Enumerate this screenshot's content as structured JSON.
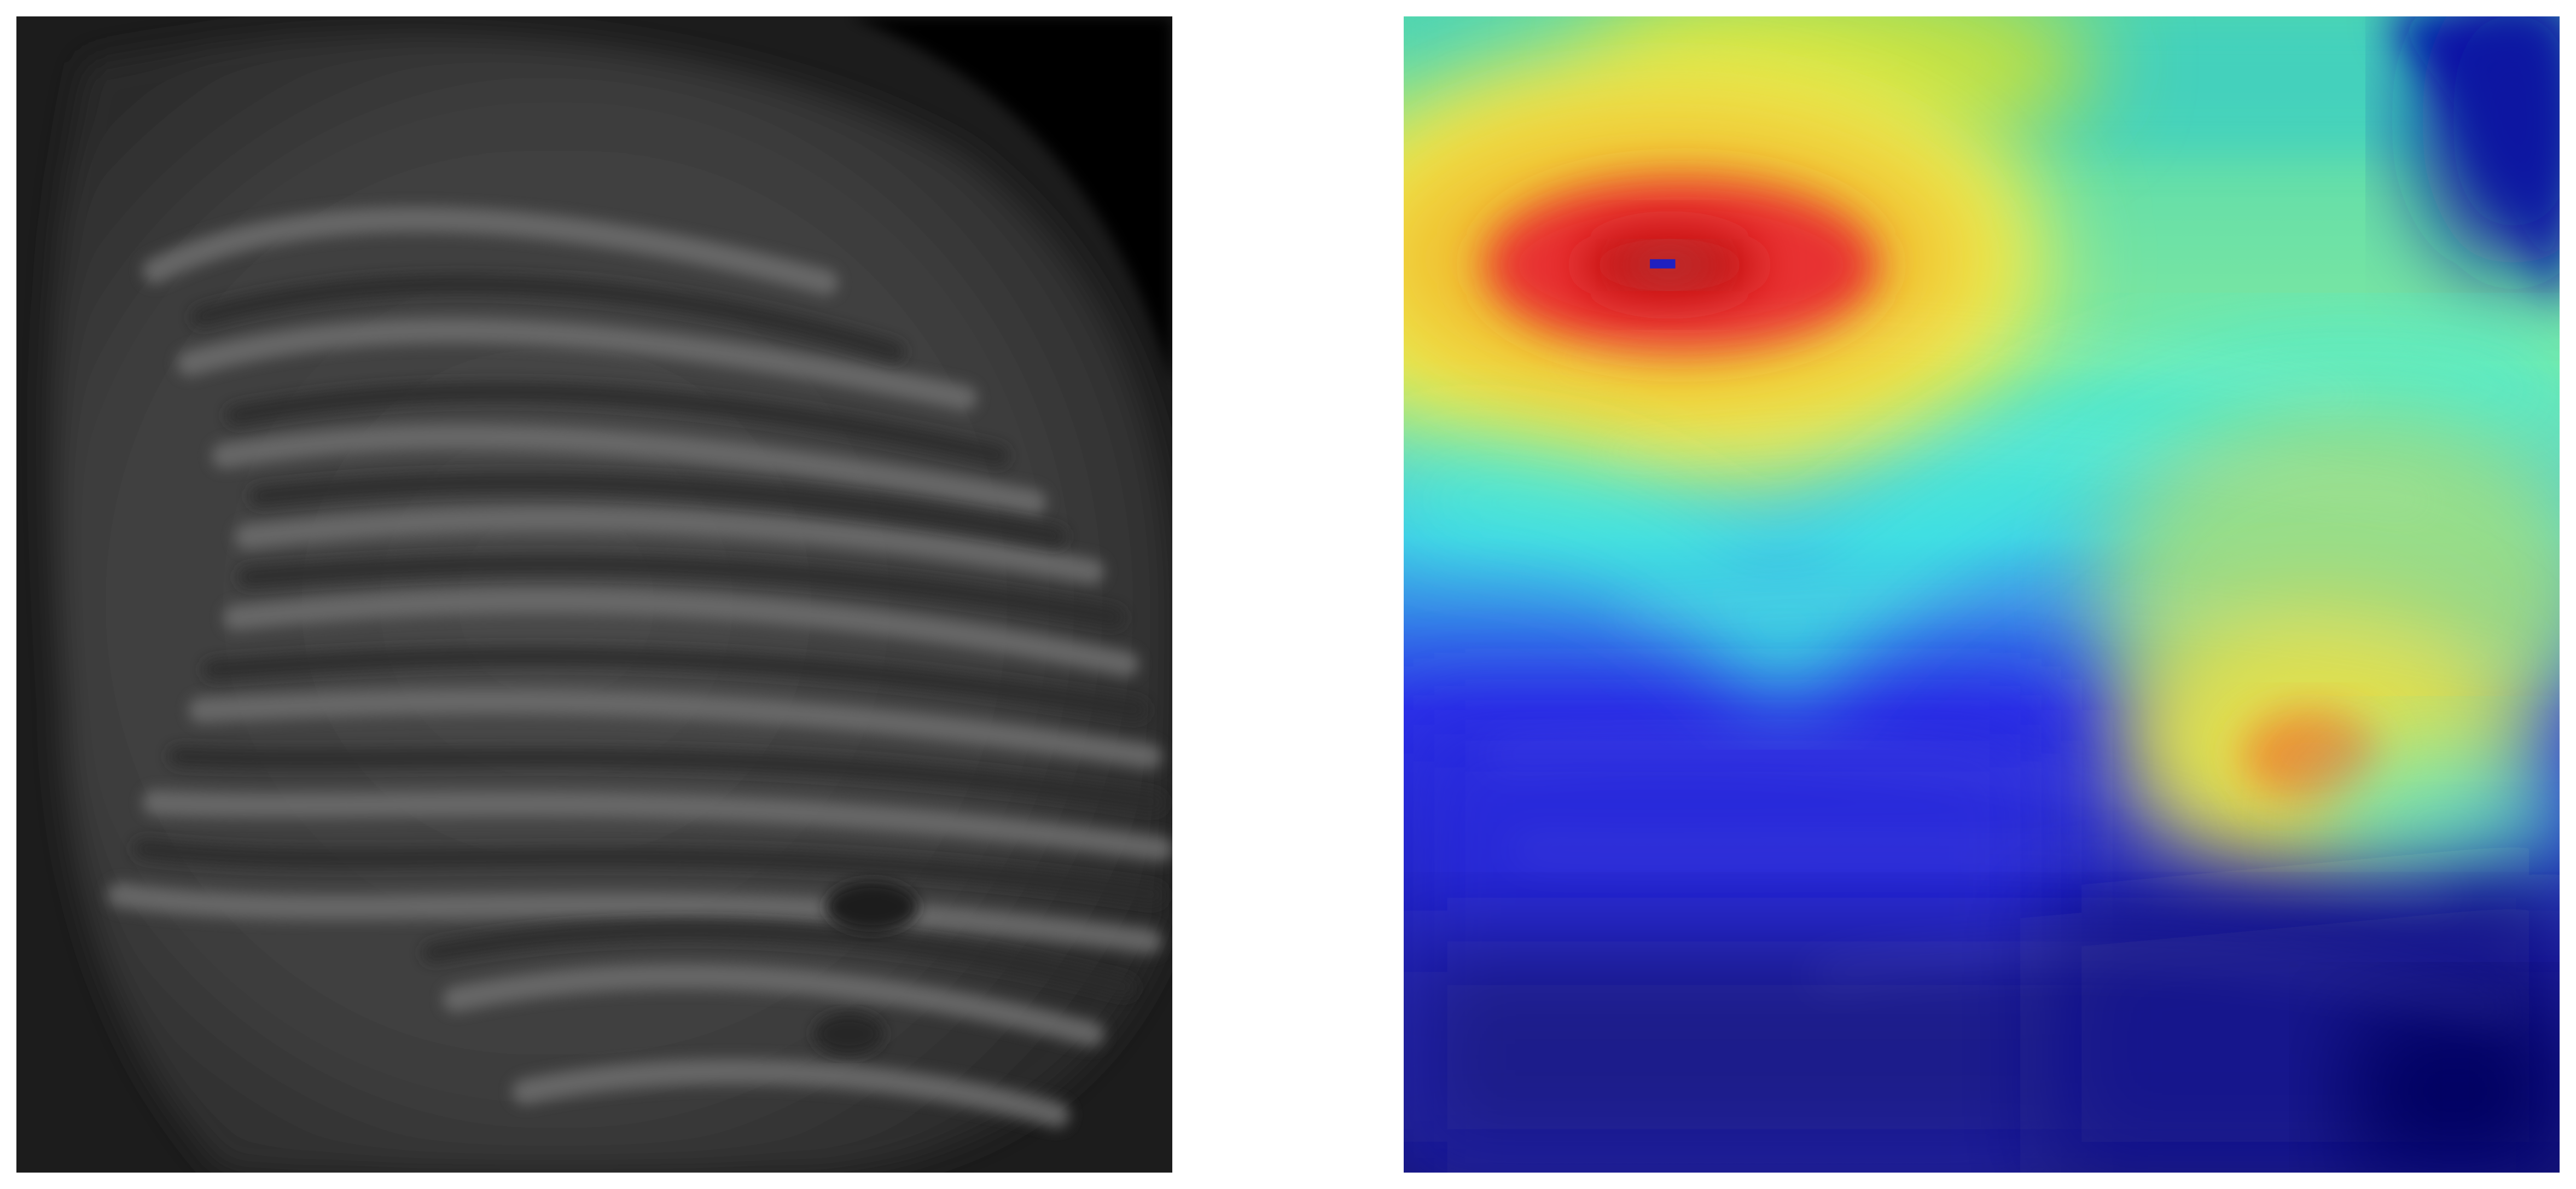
{
  "figure": {
    "panels": [
      {
        "id": "original",
        "kind": "grayscale-image"
      },
      {
        "id": "overlay",
        "kind": "heatmap-overlay",
        "colormap": "jet"
      }
    ]
  },
  "palette": {
    "background": "#ffffff",
    "gray_dark": "#1a1a1a",
    "gray_mid": "#555555",
    "gray_light": "#7a7a7a",
    "jet_dark_blue": "#10127a",
    "jet_blue": "#2a2ae0",
    "jet_cyan": "#33e6e0",
    "jet_yellow": "#f0e040",
    "jet_red": "#e02020"
  }
}
